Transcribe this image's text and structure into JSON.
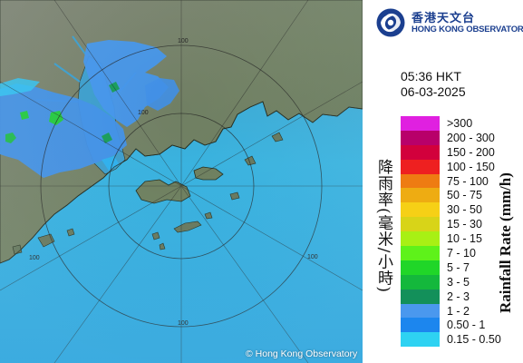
{
  "org": {
    "name_zh": "香港天文台",
    "name_en": "HONG KONG OBSERVATORY",
    "logo_icon": "hko-swirl-logo-icon"
  },
  "timestamp": {
    "time": "05:36 HKT",
    "date": "06-03-2025"
  },
  "legend": {
    "title_zh": "降雨率(毫米/小時)",
    "title_en": "Rainfall Rate (mm/h)",
    "items": [
      {
        "label": ">300",
        "color": "#e020e0"
      },
      {
        "label": "200 - 300",
        "color": "#b8006a"
      },
      {
        "label": "150 - 200",
        "color": "#d2003c"
      },
      {
        "label": "100 - 150",
        "color": "#ee2020"
      },
      {
        "label": "75 - 100",
        "color": "#ee7c12"
      },
      {
        "label": "50 - 75",
        "color": "#eeac12"
      },
      {
        "label": "30 - 50",
        "color": "#f6d016"
      },
      {
        "label": "15 - 30",
        "color": "#d8d418"
      },
      {
        "label": "10 - 15",
        "color": "#a8f014"
      },
      {
        "label": "7 - 10",
        "color": "#5ef21a"
      },
      {
        "label": "5 - 7",
        "color": "#20d628"
      },
      {
        "label": "3 - 5",
        "color": "#14b83c"
      },
      {
        "label": "2 - 3",
        "color": "#13905a"
      },
      {
        "label": "1 - 2",
        "color": "#4a98ee"
      },
      {
        "label": "0.50 - 1",
        "color": "#1c86ee"
      },
      {
        "label": "0.15 - 0.50",
        "color": "#2ed2f2"
      }
    ]
  },
  "map": {
    "range_ring_labels": [
      "100",
      "100",
      "100",
      "100",
      "100"
    ],
    "copyright": "© Hong Kong Observatory",
    "sea_color": "#33b3e0",
    "land_color": "#6a7c5e",
    "grid_color": "#1e1e1e"
  }
}
